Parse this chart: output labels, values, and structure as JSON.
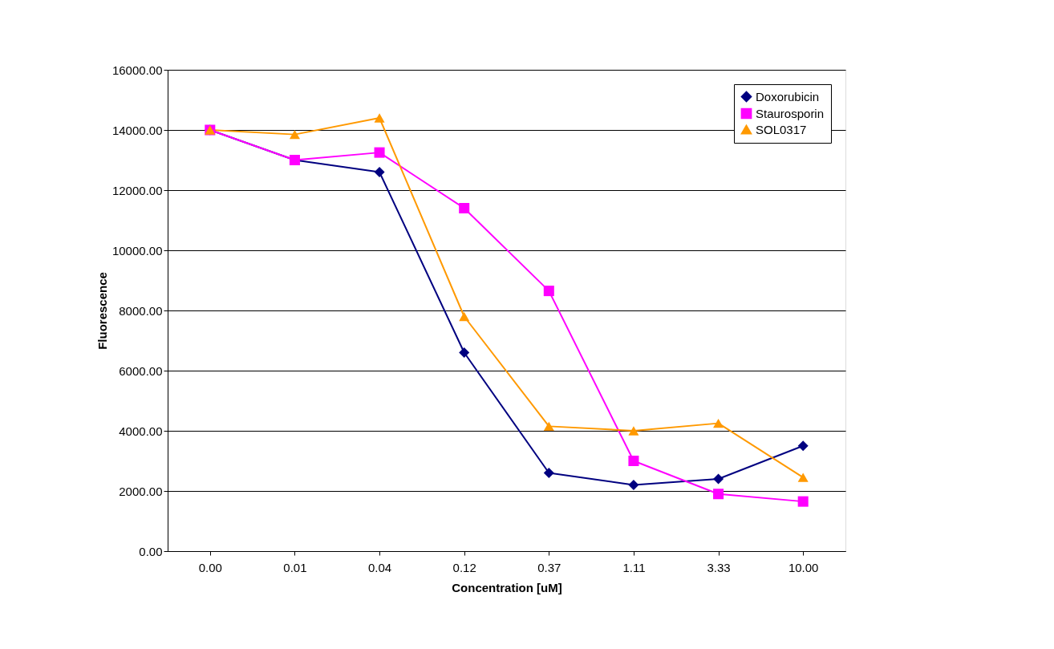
{
  "chart_data": {
    "type": "line",
    "xlabel": "Concentration [uM]",
    "ylabel": "Fluorescence",
    "categories": [
      "0.00",
      "0.01",
      "0.04",
      "0.12",
      "0.37",
      "1.11",
      "3.33",
      "10.00"
    ],
    "series": [
      {
        "name": "Doxorubicin",
        "color": "#000080",
        "marker": "diamond",
        "values": [
          14000,
          13000,
          12600,
          6600,
          2600,
          2200,
          2400,
          3500
        ]
      },
      {
        "name": "Staurosporin",
        "color": "#ff00ff",
        "marker": "square",
        "values": [
          14000,
          13000,
          13250,
          11400,
          8650,
          3000,
          1900,
          1650
        ]
      },
      {
        "name": "SOL0317",
        "color": "#ff9900",
        "marker": "triangle",
        "values": [
          14000,
          13850,
          14400,
          7800,
          4150,
          4000,
          4250,
          2450
        ]
      }
    ],
    "ylim": [
      0,
      16000
    ],
    "yticks": [
      {
        "value": 0,
        "label": "0.00"
      },
      {
        "value": 2000,
        "label": "2000.00"
      },
      {
        "value": 4000,
        "label": "4000.00"
      },
      {
        "value": 6000,
        "label": "6000.00"
      },
      {
        "value": 8000,
        "label": "8000.00"
      },
      {
        "value": 10000,
        "label": "10000.00"
      },
      {
        "value": 12000,
        "label": "12000.00"
      },
      {
        "value": 14000,
        "label": "14000.00"
      },
      {
        "value": 16000,
        "label": "16000.00"
      }
    ],
    "grid": "y",
    "legend": "top right",
    "line_style": "solid"
  }
}
